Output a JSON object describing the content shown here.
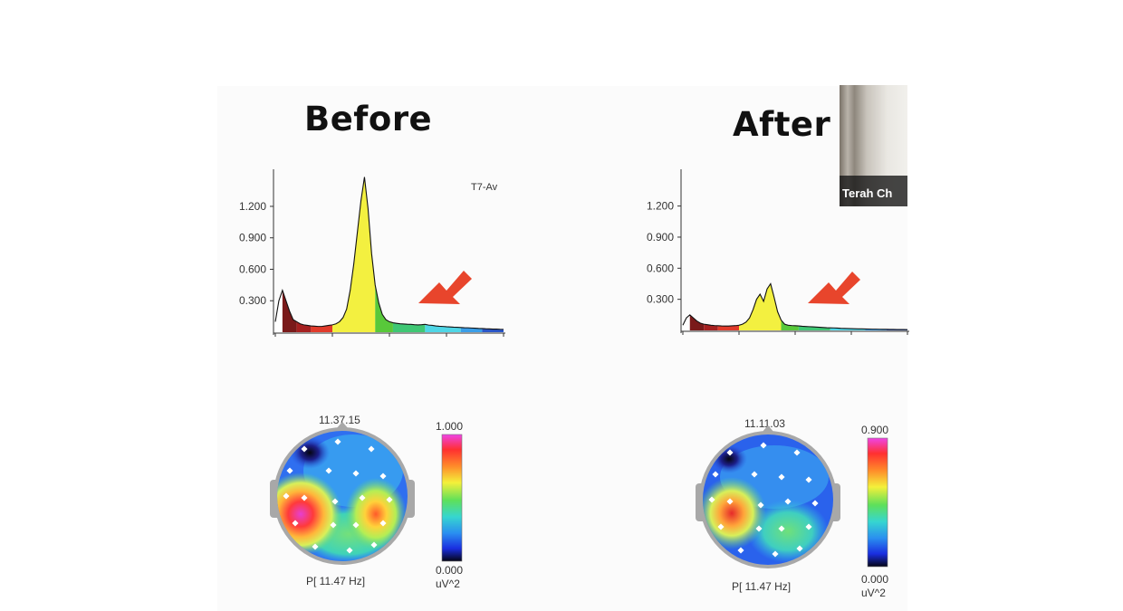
{
  "headings": {
    "before": "Before",
    "after": "After"
  },
  "video_tile": {
    "name": "Terah Ch"
  },
  "colors": {
    "arrow": "#e8452c",
    "alpha_peak": "#f3f040"
  },
  "chart_data": [
    {
      "type": "area",
      "panel": "before",
      "channel_label": "T7-Av",
      "yticks": [
        "1.200",
        "0.900",
        "0.600",
        "0.300"
      ],
      "ytick_values": [
        1.2,
        0.9,
        0.6,
        0.3
      ],
      "ylim": [
        0,
        1.45
      ],
      "x": [
        0,
        1,
        2,
        3,
        4,
        5,
        6,
        7,
        8,
        9,
        10,
        11,
        12,
        13,
        14,
        15,
        16,
        17,
        18,
        19,
        20,
        21,
        22,
        23,
        24,
        25,
        26,
        27,
        28,
        29,
        30,
        31,
        32,
        33,
        34,
        35,
        36,
        37,
        38,
        39,
        40,
        41,
        42,
        43,
        44,
        45,
        46,
        47,
        48,
        49,
        50,
        51,
        52,
        53,
        54,
        55,
        56,
        57,
        58,
        59,
        60,
        61,
        62,
        63,
        64
      ],
      "y": [
        0.1,
        0.3,
        0.4,
        0.3,
        0.2,
        0.12,
        0.1,
        0.08,
        0.07,
        0.065,
        0.06,
        0.058,
        0.055,
        0.055,
        0.06,
        0.065,
        0.07,
        0.08,
        0.1,
        0.14,
        0.22,
        0.4,
        0.65,
        0.95,
        1.25,
        1.48,
        1.18,
        0.75,
        0.45,
        0.28,
        0.17,
        0.12,
        0.1,
        0.09,
        0.085,
        0.08,
        0.078,
        0.076,
        0.075,
        0.072,
        0.07,
        0.072,
        0.075,
        0.068,
        0.065,
        0.06,
        0.057,
        0.055,
        0.052,
        0.05,
        0.048,
        0.047,
        0.045,
        0.043,
        0.042,
        0.04,
        0.038,
        0.036,
        0.035,
        0.033,
        0.032,
        0.03,
        0.03,
        0.028,
        0.027
      ],
      "bands": [
        {
          "from": 0,
          "to": 2,
          "color": "#ffffff"
        },
        {
          "from": 2,
          "to": 6,
          "color": "#7a1a1a"
        },
        {
          "from": 6,
          "to": 10,
          "color": "#a52020"
        },
        {
          "from": 10,
          "to": 16,
          "color": "#e03a2a"
        },
        {
          "from": 16,
          "to": 28,
          "color": "#f3f040"
        },
        {
          "from": 28,
          "to": 33,
          "color": "#58c83a"
        },
        {
          "from": 33,
          "to": 42,
          "color": "#3fc774"
        },
        {
          "from": 42,
          "to": 52,
          "color": "#4fd6e6"
        },
        {
          "from": 52,
          "to": 58,
          "color": "#3a9ee8"
        },
        {
          "from": 58,
          "to": 64,
          "color": "#2a56c8"
        }
      ]
    },
    {
      "type": "area",
      "panel": "after",
      "channel_label": "",
      "yticks": [
        "1.200",
        "0.900",
        "0.600",
        "0.300"
      ],
      "ytick_values": [
        1.2,
        0.9,
        0.6,
        0.3
      ],
      "ylim": [
        0,
        1.45
      ],
      "x": [
        0,
        1,
        2,
        3,
        4,
        5,
        6,
        7,
        8,
        9,
        10,
        11,
        12,
        13,
        14,
        15,
        16,
        17,
        18,
        19,
        20,
        21,
        22,
        23,
        24,
        25,
        26,
        27,
        28,
        29,
        30,
        31,
        32,
        33,
        34,
        35,
        36,
        37,
        38,
        39,
        40,
        41,
        42,
        43,
        44,
        45,
        46,
        47,
        48,
        49,
        50,
        51,
        52,
        53,
        54,
        55,
        56,
        57,
        58,
        59,
        60,
        61,
        62,
        63,
        64
      ],
      "y": [
        0.05,
        0.12,
        0.15,
        0.12,
        0.09,
        0.07,
        0.06,
        0.055,
        0.05,
        0.047,
        0.045,
        0.043,
        0.042,
        0.042,
        0.044,
        0.046,
        0.05,
        0.06,
        0.08,
        0.12,
        0.2,
        0.3,
        0.35,
        0.28,
        0.4,
        0.45,
        0.32,
        0.18,
        0.1,
        0.06,
        0.05,
        0.047,
        0.045,
        0.043,
        0.04,
        0.038,
        0.036,
        0.034,
        0.032,
        0.03,
        0.028,
        0.026,
        0.025,
        0.024,
        0.022,
        0.02,
        0.019,
        0.018,
        0.017,
        0.016,
        0.015,
        0.015,
        0.014,
        0.013,
        0.012,
        0.012,
        0.011,
        0.01,
        0.01,
        0.009,
        0.009,
        0.008,
        0.008,
        0.008,
        0.007
      ],
      "bands": [
        {
          "from": 0,
          "to": 2,
          "color": "#ffffff"
        },
        {
          "from": 2,
          "to": 6,
          "color": "#7a1a1a"
        },
        {
          "from": 6,
          "to": 10,
          "color": "#a52020"
        },
        {
          "from": 10,
          "to": 16,
          "color": "#e03a2a"
        },
        {
          "from": 16,
          "to": 28,
          "color": "#f3f040"
        },
        {
          "from": 28,
          "to": 33,
          "color": "#58c83a"
        },
        {
          "from": 33,
          "to": 42,
          "color": "#3fc774"
        },
        {
          "from": 42,
          "to": 52,
          "color": "#4fd6e6"
        },
        {
          "from": 52,
          "to": 58,
          "color": "#3a9ee8"
        },
        {
          "from": 58,
          "to": 64,
          "color": "#2a56c8"
        }
      ]
    },
    {
      "type": "heatmap",
      "panel": "before",
      "timestamp": "11.37.15",
      "frequency_label": "P[ 11.47 Hz]",
      "scale_max": "1.000",
      "scale_min": "0.000",
      "unit": "uV^2",
      "value_range": [
        0,
        1.0
      ],
      "blobs": [
        {
          "position": "left-temporal",
          "level": 1.0
        },
        {
          "position": "right-temporal",
          "level": 0.8
        },
        {
          "position": "left-frontal",
          "level": 0.0
        }
      ]
    },
    {
      "type": "heatmap",
      "panel": "after",
      "timestamp": "11.11.03",
      "frequency_label": "P[ 11.47 Hz]",
      "scale_max": "0.900",
      "scale_min": "0.000",
      "unit": "uV^2",
      "value_range": [
        0,
        0.9
      ],
      "blobs": [
        {
          "position": "left-temporal",
          "level": 0.85
        },
        {
          "position": "right-temporal",
          "level": 0.45
        },
        {
          "position": "left-frontal",
          "level": 0.0
        }
      ]
    }
  ]
}
